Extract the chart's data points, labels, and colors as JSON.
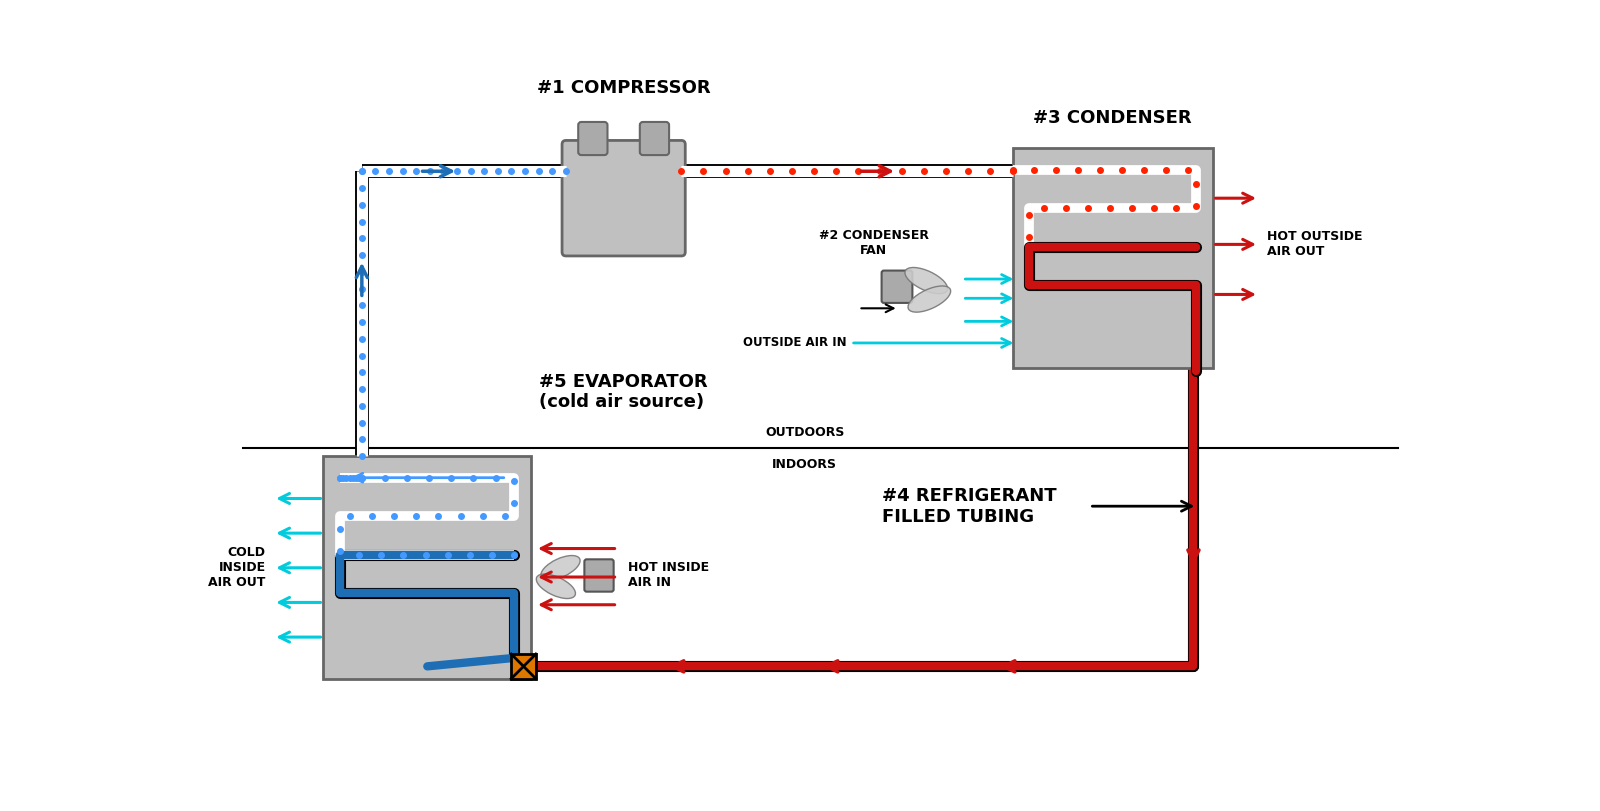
{
  "bg_color": "#ffffff",
  "compressor_label": "#1 COMPRESSOR",
  "condenser_label": "#3 CONDENSER",
  "condenser_fan_label": "#2 CONDENSER\nFAN",
  "evaporator_label": "#5 EVAPORATOR\n(cold air source)",
  "refrigerant_label": "#4 REFRIGERANT\nFILLED TUBING",
  "outdoors_label": "OUTDOORS",
  "indoors_label": "INDOORS",
  "hot_outside_label": "HOT OUTSIDE\nAIR OUT",
  "outside_air_in_label": "OUTSIDE AIR IN",
  "cold_inside_label": "COLD\nINSIDE\nAIR OUT",
  "hot_inside_label": "HOT INSIDE\nAIR IN",
  "blue_color": "#1e6eb5",
  "red_color": "#cc1111",
  "cyan_color": "#00ccdd",
  "gray_box": "#b8b8b8",
  "orange_color": "#dd7700",
  "dot_blue": "#4499ff",
  "dot_red": "#ff2200"
}
